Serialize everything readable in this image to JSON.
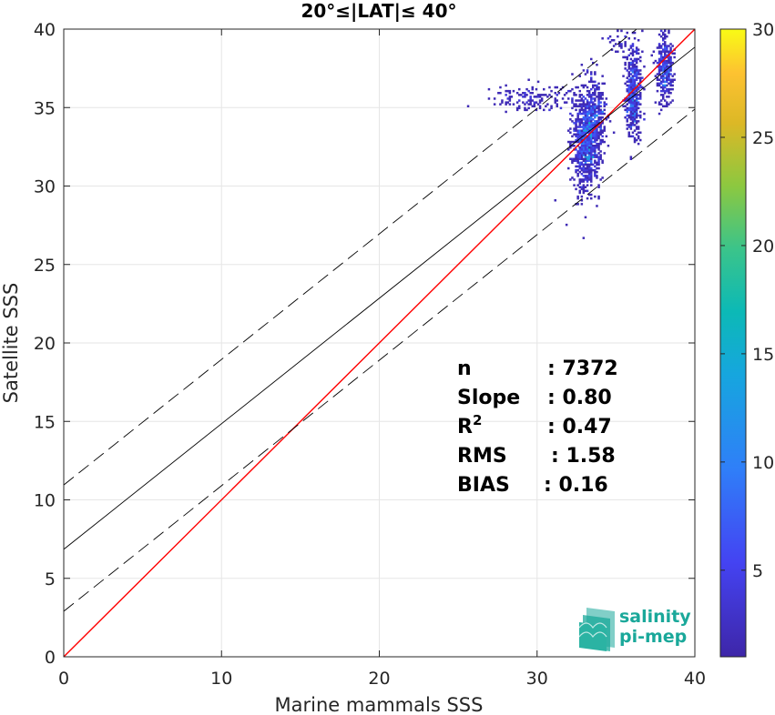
{
  "chart_data": {
    "type": "scatter",
    "subtype": "2d-density-histogram",
    "title": "20°≤|LAT|≤ 40°",
    "xlabel": "Marine mammals SSS",
    "ylabel": "Satellite SSS",
    "xlim": [
      0,
      40
    ],
    "ylim": [
      0,
      40
    ],
    "xticks": [
      "0",
      "10",
      "20",
      "30",
      "40"
    ],
    "yticks": [
      "0",
      "5",
      "10",
      "15",
      "20",
      "25",
      "30",
      "35",
      "40"
    ],
    "grid": true,
    "lines": [
      {
        "kind": "identity",
        "color": "#ff0000",
        "slope": 1,
        "intercept": 0
      },
      {
        "kind": "regression",
        "color": "#000000",
        "slope": 0.8,
        "intercept": 6.85
      },
      {
        "kind": "upper-bound",
        "color": "#000000",
        "dashed": true,
        "slope": 0.8,
        "intercept": 10.95
      },
      {
        "kind": "lower-bound",
        "color": "#000000",
        "dashed": true,
        "slope": 0.8,
        "intercept": 2.9
      }
    ],
    "clusters": [
      {
        "x": 33.1,
        "y": 32.8,
        "sx": 0.45,
        "sy": 1.5,
        "n": 900,
        "peak": 14
      },
      {
        "x": 33.6,
        "y": 34.5,
        "sx": 0.35,
        "sy": 1.2,
        "n": 350,
        "peak": 9
      },
      {
        "x": 36.1,
        "y": 36.0,
        "sx": 0.25,
        "sy": 1.4,
        "n": 500,
        "peak": 13
      },
      {
        "x": 38.1,
        "y": 37.5,
        "sx": 0.25,
        "sy": 1.1,
        "n": 350,
        "peak": 10
      },
      {
        "x": 29.5,
        "y": 35.6,
        "sx": 1.4,
        "sy": 0.45,
        "n": 150,
        "peak": 4
      },
      {
        "x": 35.3,
        "y": 39.0,
        "sx": 0.6,
        "sy": 0.6,
        "n": 40,
        "peak": 3
      }
    ],
    "colorbar": {
      "range": [
        1,
        30
      ],
      "ticks": [
        "5",
        "10",
        "15",
        "20",
        "25",
        "30"
      ],
      "colormap": "parula"
    },
    "stats": [
      {
        "label": "n",
        "value": ": 7372"
      },
      {
        "label": "Slope",
        "value": ": 0.80"
      },
      {
        "label": "R2",
        "value": ": 0.47"
      },
      {
        "label": "RMS",
        "value": ": 1.58"
      },
      {
        "label": "BIAS",
        "value": ": 0.16"
      }
    ]
  },
  "logo": {
    "line1": "salinity",
    "line2": "pi-mep",
    "color": "#1aa89a"
  },
  "colors": {
    "axis": "#262626",
    "grid": "#e6e6e6",
    "identity": "#ff0000",
    "fit": "#000000"
  }
}
